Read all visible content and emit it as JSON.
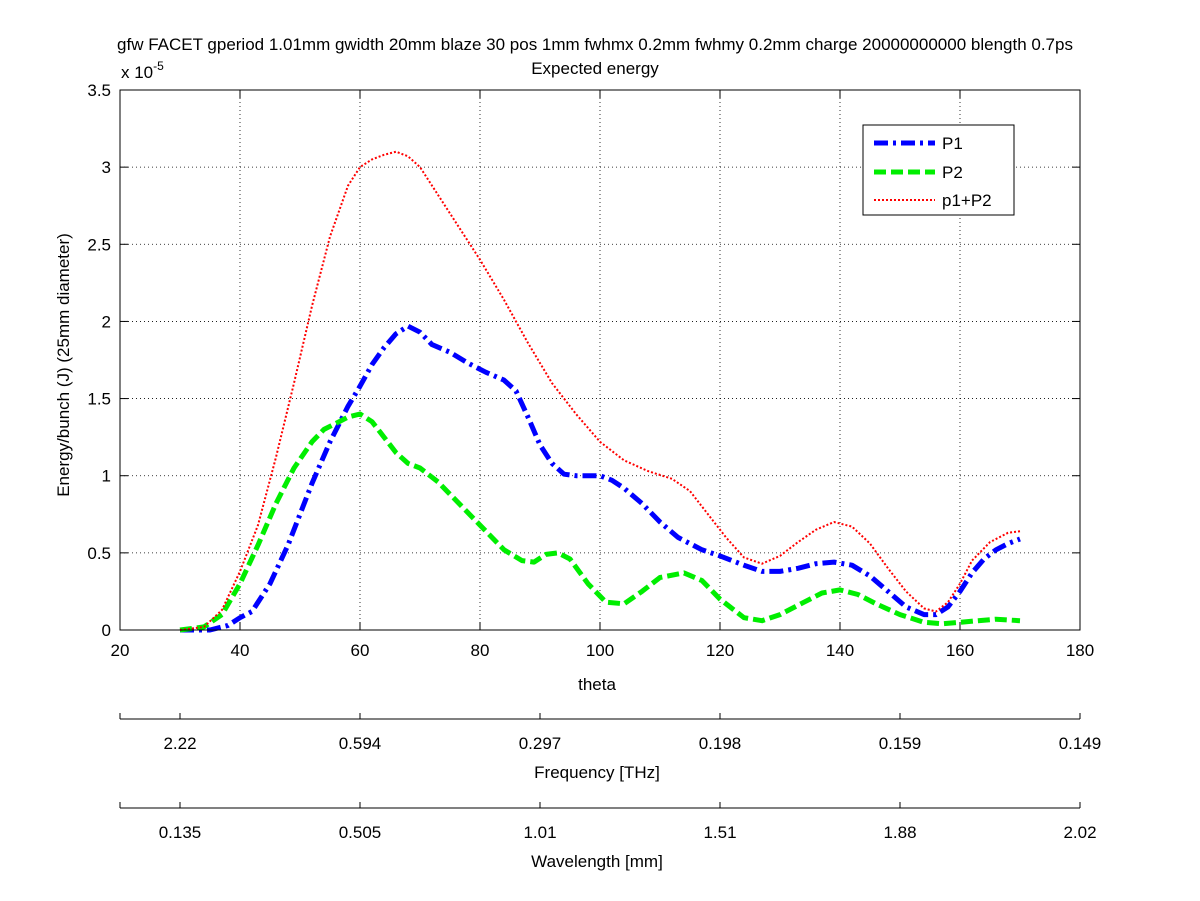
{
  "chart_data": {
    "type": "line",
    "title_line1": "gfw FACET gperiod 1.01mm gwidth 20mm blaze 30 pos 1mm fwhmx 0.2mm fwhmy 0.2mm charge 20000000000 blength 0.7ps",
    "title_line2": "Expected energy",
    "xlabel": "theta",
    "ylabel": "Energy/bunch (J) (25mm diameter)",
    "y_exponent_label": "x 10",
    "y_exponent_power": "-5",
    "xlim": [
      20,
      180
    ],
    "ylim": [
      0,
      3.5
    ],
    "grid": true,
    "legend_position": "top-right",
    "x_ticks": [
      "20",
      "40",
      "60",
      "80",
      "100",
      "120",
      "140",
      "160",
      "180"
    ],
    "y_ticks": [
      "0",
      "0.5",
      "1",
      "1.5",
      "2",
      "2.5",
      "3",
      "3.5"
    ],
    "series": [
      {
        "name": "P1",
        "color": "#0000ff",
        "style": "dash-dot",
        "x": [
          30,
          35,
          38,
          40,
          42,
          45,
          48,
          52,
          55,
          58,
          60,
          62,
          64,
          66,
          68,
          70,
          72,
          75,
          78,
          81,
          84,
          86,
          88,
          90,
          92,
          94,
          96,
          98,
          100,
          102,
          104,
          107,
          110,
          113,
          117,
          120,
          124,
          127,
          130,
          133,
          136,
          139,
          142,
          145,
          148,
          151,
          154,
          156,
          158,
          160,
          162,
          164,
          166,
          168,
          170
        ],
        "y": [
          0,
          0,
          0.03,
          0.08,
          0.12,
          0.3,
          0.55,
          0.95,
          1.22,
          1.45,
          1.58,
          1.72,
          1.83,
          1.92,
          1.97,
          1.93,
          1.85,
          1.8,
          1.73,
          1.67,
          1.62,
          1.55,
          1.38,
          1.2,
          1.08,
          1.01,
          1.0,
          1.0,
          1.0,
          0.97,
          0.92,
          0.82,
          0.7,
          0.6,
          0.52,
          0.48,
          0.42,
          0.38,
          0.38,
          0.4,
          0.43,
          0.44,
          0.42,
          0.35,
          0.25,
          0.15,
          0.1,
          0.1,
          0.15,
          0.25,
          0.37,
          0.46,
          0.52,
          0.56,
          0.59
        ]
      },
      {
        "name": "P2",
        "color": "#00ee00",
        "style": "dashed",
        "x": [
          30,
          34,
          37,
          40,
          43,
          46,
          49,
          52,
          54,
          56,
          58,
          60,
          62,
          64,
          66,
          68,
          70,
          73,
          76,
          80,
          84,
          87,
          89,
          91,
          93,
          95,
          98,
          101,
          104,
          107,
          110,
          114,
          117,
          120,
          124,
          127,
          130,
          134,
          137,
          140,
          143,
          146,
          150,
          154,
          157,
          160,
          163,
          166,
          170
        ],
        "y": [
          0,
          0.02,
          0.1,
          0.3,
          0.55,
          0.82,
          1.05,
          1.22,
          1.3,
          1.34,
          1.38,
          1.4,
          1.35,
          1.25,
          1.15,
          1.08,
          1.05,
          0.96,
          0.84,
          0.68,
          0.52,
          0.45,
          0.44,
          0.49,
          0.5,
          0.46,
          0.3,
          0.18,
          0.17,
          0.25,
          0.34,
          0.37,
          0.32,
          0.2,
          0.08,
          0.06,
          0.1,
          0.18,
          0.24,
          0.26,
          0.23,
          0.17,
          0.1,
          0.05,
          0.04,
          0.05,
          0.06,
          0.07,
          0.06
        ]
      },
      {
        "name": "p1+P2",
        "color": "#ff0000",
        "style": "dotted",
        "x": [
          30,
          34,
          37,
          40,
          43,
          46,
          49,
          52,
          55,
          58,
          60,
          62,
          64,
          66,
          68,
          70,
          73,
          76,
          80,
          84,
          88,
          92,
          96,
          100,
          104,
          108,
          112,
          115,
          118,
          121,
          124,
          127,
          130,
          133,
          136,
          139,
          142,
          145,
          148,
          151,
          154,
          156,
          158,
          160,
          162,
          165,
          168,
          170
        ],
        "y": [
          0,
          0.02,
          0.13,
          0.38,
          0.68,
          1.12,
          1.6,
          2.1,
          2.55,
          2.88,
          3.0,
          3.05,
          3.08,
          3.1,
          3.07,
          3.0,
          2.82,
          2.64,
          2.4,
          2.14,
          1.86,
          1.6,
          1.4,
          1.22,
          1.1,
          1.03,
          0.98,
          0.9,
          0.75,
          0.6,
          0.47,
          0.43,
          0.48,
          0.57,
          0.65,
          0.7,
          0.67,
          0.56,
          0.4,
          0.25,
          0.14,
          0.12,
          0.18,
          0.3,
          0.45,
          0.57,
          0.63,
          0.64
        ]
      }
    ],
    "secondary_axes": [
      {
        "label": "Frequency [THz]",
        "ticks": [
          "2.22",
          "0.594",
          "0.297",
          "0.198",
          "0.159",
          "0.149"
        ],
        "tick_theta": [
          30,
          60,
          90,
          120,
          150,
          170
        ]
      },
      {
        "label": "Wavelength [mm]",
        "ticks": [
          "0.135",
          "0.505",
          "1.01",
          "1.51",
          "1.88",
          "2.02"
        ],
        "tick_theta": [
          30,
          60,
          90,
          120,
          150,
          170
        ]
      }
    ]
  }
}
